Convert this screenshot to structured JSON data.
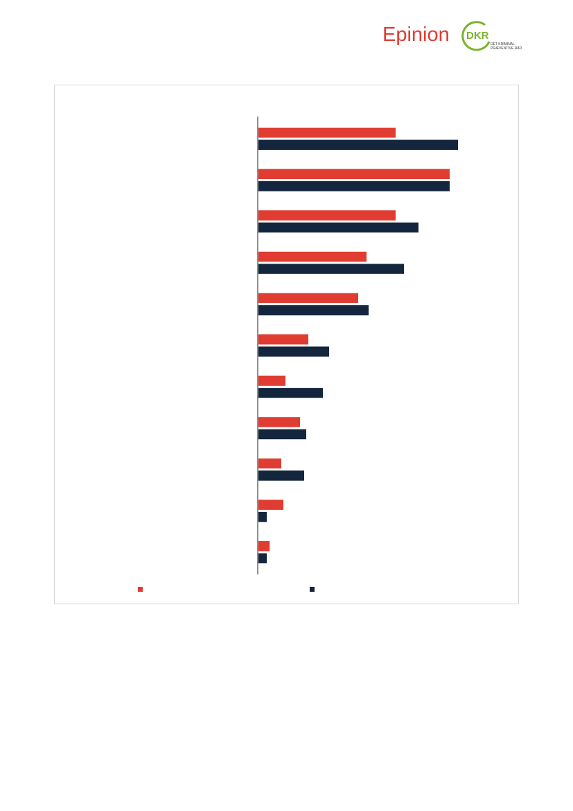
{
  "header": {
    "brand": "Epinion",
    "partner": "DKR",
    "partner_line1": "DET KRIMINAL",
    "partner_line2": "PRÆVENTIVE RÅD"
  },
  "chart_data": {
    "type": "hbar",
    "categories": [
      null,
      null,
      null,
      null,
      null,
      null,
      null,
      null,
      null,
      null,
      null
    ],
    "series": [
      {
        "color": "#e03c31",
        "values": [
          33,
          46,
          33,
          26,
          24,
          12,
          6.5,
          10,
          5.5,
          6,
          2.7
        ]
      },
      {
        "color": "#13263d",
        "values": [
          48,
          46,
          38.5,
          35,
          26.5,
          17,
          15.5,
          11.5,
          11,
          2,
          2
        ]
      }
    ]
  }
}
